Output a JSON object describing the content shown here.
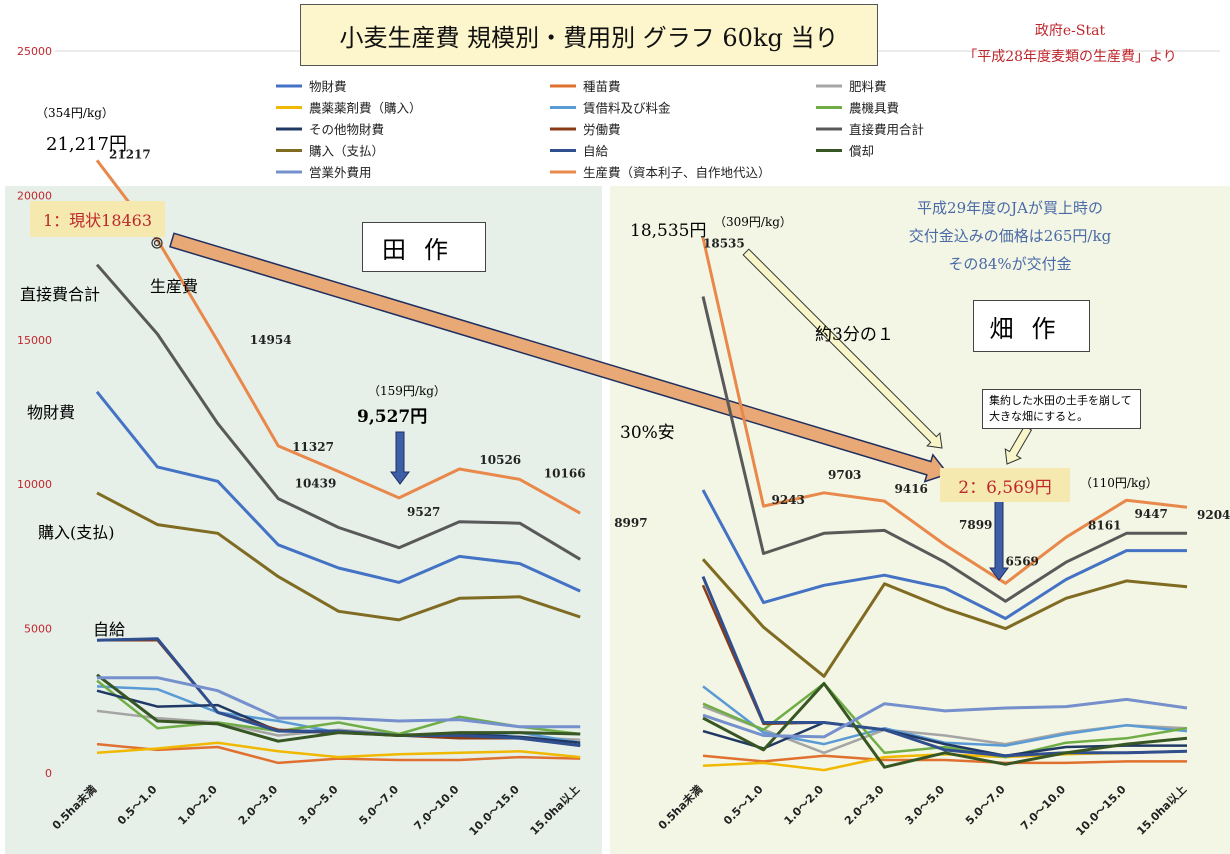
{
  "title": "小麦生産費 規模別・費用別 グラフ 60kg 当り",
  "source": {
    "line1": "政府e-Stat",
    "line2": "「平成28年度麦類の生産費」より"
  },
  "panels": {
    "paddy": "田作",
    "field": "畑作"
  },
  "annotations": {
    "paddy_now": "1：現状18463",
    "field_target": "2：6,569円",
    "price_354": "（354円/kg）",
    "cost_21217": "21,217円",
    "price_159": "（159円/kg）",
    "cost_9527": "9,527円",
    "cost_18535": "18,535円",
    "price_309": "（309円/kg）",
    "price_110": "（110円/kg）",
    "third": "約3分の１",
    "cheaper": "30%安",
    "note_consolidate": "集約した水田の土手を崩して大きな畑にすると。",
    "ja_note_1": "平成29年度のJAが買上時の",
    "ja_note_2": "交付金込みの価格は265円/kg",
    "ja_note_3": "その84%が交付金",
    "label_direct": "直接費合計",
    "label_production": "生産費",
    "label_material": "物財費",
    "label_purchase": "購入(支払)",
    "label_self": "自給"
  },
  "colors": {
    "panel_paddy": "#e6f0e9",
    "panel_field": "#f3f6e4",
    "highlight": "#f5e9b0",
    "arrow_fill": "#e8a977",
    "accent_red": "#c0272d"
  },
  "chart_data": {
    "type": "line",
    "ylim": [
      0,
      25000
    ],
    "yticks": [
      "0",
      "5000",
      "10000",
      "15000",
      "20000",
      "25000"
    ],
    "yticks_values": [
      0,
      5000,
      10000,
      15000,
      20000,
      25000
    ],
    "categories": [
      "0.5ha未満",
      "0.5～1.0",
      "1.0～2.0",
      "2.0～3.0",
      "3.0～5.0",
      "5.0～7.0",
      "7.0～10.0",
      "10.0～15.0",
      "15.0ha以上"
    ],
    "series": [
      {
        "name": "物財費",
        "color": "#4472c4",
        "width": 3,
        "paddy": [
          13200,
          10600,
          10100,
          7900,
          7100,
          6600,
          7500,
          7250,
          6300
        ],
        "field": [
          9800,
          5900,
          6500,
          6850,
          6400,
          5350,
          6700,
          7700,
          7700
        ]
      },
      {
        "name": "種苗費",
        "color": "#e07030",
        "width": 2.5,
        "paddy": [
          1000,
          800,
          900,
          350,
          500,
          450,
          450,
          550,
          500
        ],
        "field": [
          600,
          400,
          600,
          450,
          450,
          350,
          350,
          400,
          400
        ]
      },
      {
        "name": "肥料費",
        "color": "#a5a5a5",
        "width": 2.5,
        "paddy": [
          2150,
          1900,
          1750,
          1300,
          1500,
          1350,
          1250,
          1250,
          1150
        ],
        "field": [
          2300,
          1500,
          700,
          1500,
          1300,
          1000,
          1400,
          1650,
          1550
        ]
      },
      {
        "name": "農薬薬剤費（購入）",
        "color": "#f0b800",
        "width": 2.5,
        "paddy": [
          700,
          850,
          1050,
          750,
          550,
          650,
          700,
          750,
          550
        ],
        "field": [
          250,
          350,
          100,
          550,
          650,
          550,
          650,
          700,
          750
        ]
      },
      {
        "name": "賃借料及び料金",
        "color": "#5b9bd5",
        "width": 2.5,
        "paddy": [
          3000,
          2900,
          2100,
          1800,
          1400,
          1350,
          1250,
          1400,
          1050
        ],
        "field": [
          3000,
          1400,
          1000,
          1550,
          1050,
          950,
          1350,
          1650,
          1450
        ]
      },
      {
        "name": "農機具費",
        "color": "#70ad47",
        "width": 2.5,
        "paddy": [
          3200,
          1550,
          1750,
          1450,
          1750,
          1350,
          1950,
          1600,
          1350
        ],
        "field": [
          2400,
          1500,
          3100,
          700,
          900,
          550,
          1050,
          1200,
          1550
        ]
      },
      {
        "name": "その他物財費",
        "color": "#203864",
        "width": 2.5,
        "paddy": [
          2850,
          2300,
          2350,
          1450,
          1400,
          1300,
          1350,
          1250,
          1050
        ],
        "field": [
          1450,
          850,
          1750,
          1500,
          1000,
          600,
          900,
          950,
          950
        ]
      },
      {
        "name": "労働費",
        "color": "#8a3a14",
        "width": 2.5,
        "paddy": [
          4600,
          4600,
          2100,
          1500,
          1400,
          1300,
          1200,
          1200,
          950
        ],
        "field": [
          6500,
          1700,
          1750,
          1500,
          800,
          600,
          700,
          700,
          750
        ]
      },
      {
        "name": "直接費用合計",
        "color": "#595959",
        "width": 3,
        "paddy": [
          17600,
          15200,
          12100,
          9500,
          8500,
          7800,
          8700,
          8650,
          7400
        ],
        "field": [
          16500,
          7600,
          8300,
          8400,
          7300,
          5950,
          7300,
          8300,
          8300
        ]
      },
      {
        "name": "購入（支払）",
        "color": "#7f6b21",
        "width": 3,
        "paddy": [
          9700,
          8600,
          8300,
          6800,
          5600,
          5300,
          6050,
          6100,
          5400
        ],
        "field": [
          7400,
          5050,
          3350,
          6550,
          5700,
          5000,
          6050,
          6650,
          6450
        ]
      },
      {
        "name": "自給",
        "color": "#2f4f8f",
        "width": 3,
        "paddy": [
          4600,
          4650,
          2100,
          1450,
          1450,
          1300,
          1300,
          1200,
          950
        ],
        "field": [
          6800,
          1750,
          1750,
          1500,
          800,
          600,
          700,
          700,
          750
        ]
      },
      {
        "name": "償却",
        "color": "#375623",
        "width": 3,
        "paddy": [
          3400,
          1800,
          1700,
          1100,
          1400,
          1300,
          1400,
          1400,
          1350
        ],
        "field": [
          1900,
          800,
          3100,
          200,
          700,
          300,
          700,
          1000,
          1200
        ]
      },
      {
        "name": "営業外費用",
        "color": "#7590cc",
        "width": 3,
        "paddy": [
          3300,
          3300,
          2850,
          1900,
          1900,
          1800,
          1850,
          1600,
          1600
        ],
        "field": [
          2000,
          1300,
          1250,
          2400,
          2150,
          2250,
          2300,
          2550,
          2250
        ]
      },
      {
        "name": "生産費（資本利子、自作地代込）",
        "color": "#e8884a",
        "width": 3,
        "paddy": [
          21217,
          18463,
          14954,
          11327,
          10439,
          9527,
          10526,
          10166,
          8997
        ],
        "field": [
          18535,
          9243,
          9703,
          9416,
          7899,
          6569,
          8161,
          9447,
          9204
        ]
      }
    ],
    "data_labels": {
      "paddy": [
        "21217",
        "",
        "14954",
        "11327",
        "10439",
        "9527",
        "10526",
        "10166",
        "8997"
      ],
      "field": [
        "18535",
        "9243",
        "9703",
        "9416",
        "7899",
        "6569",
        "8161",
        "9447",
        "9204"
      ]
    }
  }
}
